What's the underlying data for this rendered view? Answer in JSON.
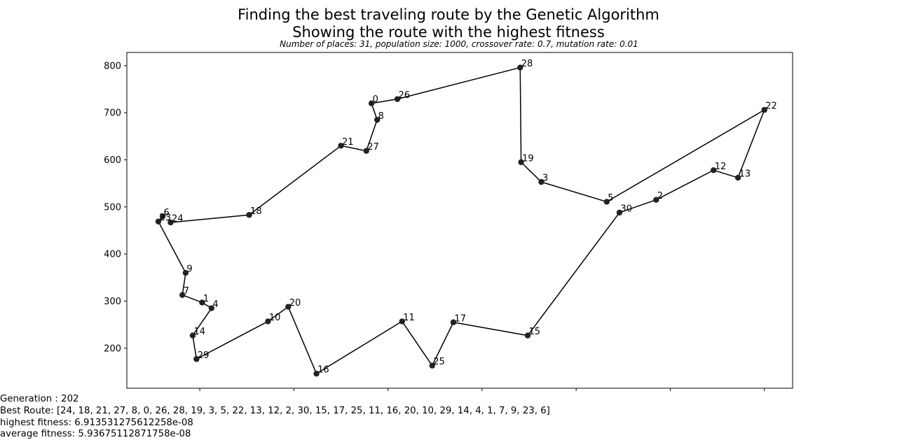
{
  "chart_data": {
    "type": "line",
    "title": "Finding the best traveling route by the Genetic Algorithm",
    "title2": "Showing the route with the highest fitness",
    "subtitle": "Number of places: 31, population size: 1000, crossover rate: 0.7, mutation rate: 0.01",
    "xlabel": "",
    "ylabel": "",
    "xlim": [
      45,
      1460
    ],
    "ylim": [
      115,
      828
    ],
    "xticks": [
      200,
      400,
      600,
      800,
      1000,
      1200,
      1400
    ],
    "yticks": [
      200,
      300,
      400,
      500,
      600,
      700,
      800
    ],
    "grid": false,
    "color": "#000000",
    "points": [
      {
        "id": "0",
        "x": 565,
        "y": 720
      },
      {
        "id": "1",
        "x": 205,
        "y": 297
      },
      {
        "id": "2",
        "x": 1170,
        "y": 515
      },
      {
        "id": "3",
        "x": 926,
        "y": 553
      },
      {
        "id": "4",
        "x": 225,
        "y": 285
      },
      {
        "id": "5",
        "x": 1065,
        "y": 511
      },
      {
        "id": "6",
        "x": 121,
        "y": 480
      },
      {
        "id": "7",
        "x": 163,
        "y": 313
      },
      {
        "id": "8",
        "x": 577,
        "y": 685
      },
      {
        "id": "9",
        "x": 170,
        "y": 360
      },
      {
        "id": "10",
        "x": 345,
        "y": 257
      },
      {
        "id": "11",
        "x": 630,
        "y": 257
      },
      {
        "id": "12",
        "x": 1292,
        "y": 578
      },
      {
        "id": "13",
        "x": 1344,
        "y": 562
      },
      {
        "id": "14",
        "x": 185,
        "y": 227
      },
      {
        "id": "15",
        "x": 897,
        "y": 227
      },
      {
        "id": "16",
        "x": 448,
        "y": 146
      },
      {
        "id": "17",
        "x": 739,
        "y": 255
      },
      {
        "id": "18",
        "x": 305,
        "y": 483
      },
      {
        "id": "19",
        "x": 883,
        "y": 595
      },
      {
        "id": "20",
        "x": 388,
        "y": 288
      },
      {
        "id": "21",
        "x": 500,
        "y": 630
      },
      {
        "id": "22",
        "x": 1400,
        "y": 706
      },
      {
        "id": "23",
        "x": 112,
        "y": 469
      },
      {
        "id": "24",
        "x": 138,
        "y": 467
      },
      {
        "id": "25",
        "x": 694,
        "y": 163
      },
      {
        "id": "26",
        "x": 620,
        "y": 729
      },
      {
        "id": "27",
        "x": 554,
        "y": 619
      },
      {
        "id": "28",
        "x": 881,
        "y": 796
      },
      {
        "id": "29",
        "x": 193,
        "y": 177
      },
      {
        "id": "30",
        "x": 1092,
        "y": 488
      }
    ],
    "route": [
      24,
      18,
      21,
      27,
      8,
      0,
      26,
      28,
      19,
      3,
      5,
      22,
      13,
      12,
      2,
      30,
      15,
      17,
      25,
      11,
      16,
      20,
      10,
      29,
      14,
      4,
      1,
      7,
      9,
      23,
      6
    ]
  },
  "info": {
    "generation": "Generation : 202",
    "best_route": "Best Route: [24, 18, 21, 27, 8, 0, 26, 28, 19, 3, 5, 22, 13, 12, 2, 30, 15, 17, 25, 11, 16, 20, 10, 29, 14, 4, 1, 7, 9, 23, 6]",
    "highest_fitness": "highest fitness: 6.913531275612258e-08",
    "average_fitness": "average fitness: 5.93675112871758e-08"
  }
}
